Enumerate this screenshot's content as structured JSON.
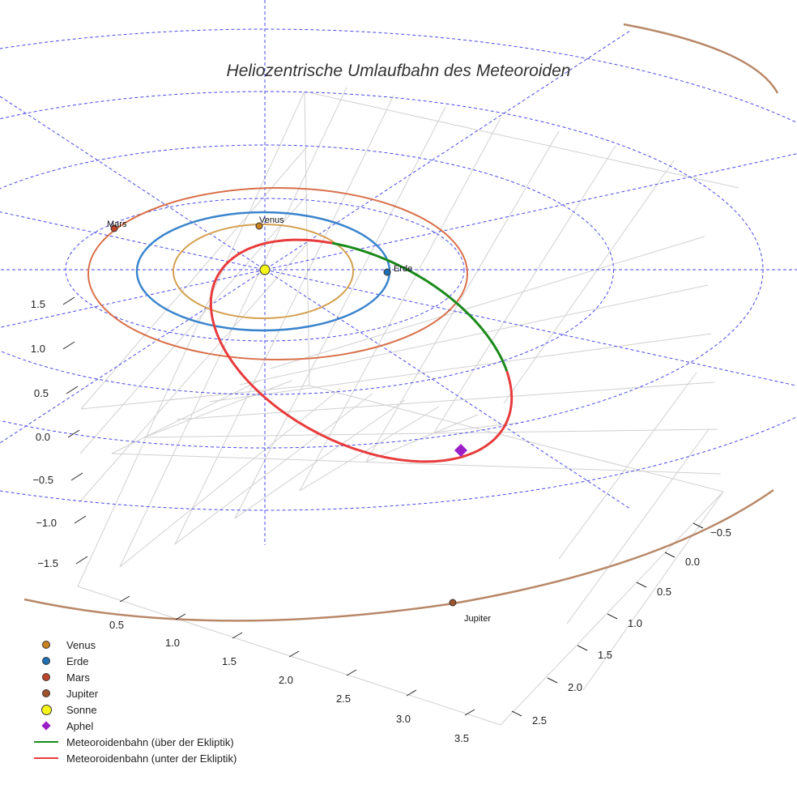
{
  "colors": {
    "venus": "#c8821e",
    "venus_orbit": "#d4a050",
    "earth": "#1f6fb4",
    "earth_orbit": "#3a84cc",
    "mars": "#c0452a",
    "mars_orbit": "#d8704a",
    "jupiter": "#a0522d",
    "jupiter_orbit": "#b88868",
    "sun": "#f5f518",
    "aphel": "#9b1fc7",
    "orbit_above": "#1b8a1b",
    "orbit_below": "#e83c3c",
    "polar_grid": "#4a4ae8",
    "box_grid": "#d0d0d0"
  },
  "chart_data": {
    "type": "line",
    "projection": "3d",
    "title": "Heliozentrische Umlaufbahn des Meteoroiden",
    "x_ticks": [
      "0.5",
      "1.0",
      "1.5",
      "2.0",
      "2.5",
      "3.0",
      "3.5"
    ],
    "y_ticks": [
      "−0.5",
      "0.0",
      "0.5",
      "1.0",
      "1.5",
      "2.0",
      "2.5"
    ],
    "z_ticks": [
      "1.5",
      "1.0",
      "0.5",
      "0.0",
      "−0.5",
      "−1.0",
      "−1.5"
    ],
    "orbits": [
      {
        "name": "Venus",
        "radius": 0.72
      },
      {
        "name": "Erde",
        "radius": 1.0
      },
      {
        "name": "Mars",
        "radius": 1.52
      },
      {
        "name": "Jupiter",
        "radius": 5.2
      }
    ],
    "meteoroid": {
      "perihelion": 1.0,
      "aphelion": 2.35
    },
    "series": [
      {
        "name": "Meteoroidenbahn (über der Ekliptik)"
      },
      {
        "name": "Meteoroidenbahn (unter der Ekliptik)"
      }
    ],
    "labels": {
      "venus": "Venus",
      "earth": "Erde",
      "mars": "Mars",
      "jupiter": "Jupiter"
    }
  },
  "legend": [
    {
      "key": "venus",
      "label": "Venus",
      "kind": "dot"
    },
    {
      "key": "earth",
      "label": "Erde",
      "kind": "dot"
    },
    {
      "key": "mars",
      "label": "Mars",
      "kind": "dot"
    },
    {
      "key": "jupiter",
      "label": "Jupiter",
      "kind": "dot"
    },
    {
      "key": "sun",
      "label": "Sonne",
      "kind": "sun"
    },
    {
      "key": "aphel",
      "label": "Aphel",
      "kind": "diamond"
    },
    {
      "key": "orbit_above",
      "label": "Meteoroidenbahn (über der Ekliptik)",
      "kind": "line"
    },
    {
      "key": "orbit_below",
      "label": "Meteoroidenbahn (unter der Ekliptik)",
      "kind": "line"
    }
  ]
}
